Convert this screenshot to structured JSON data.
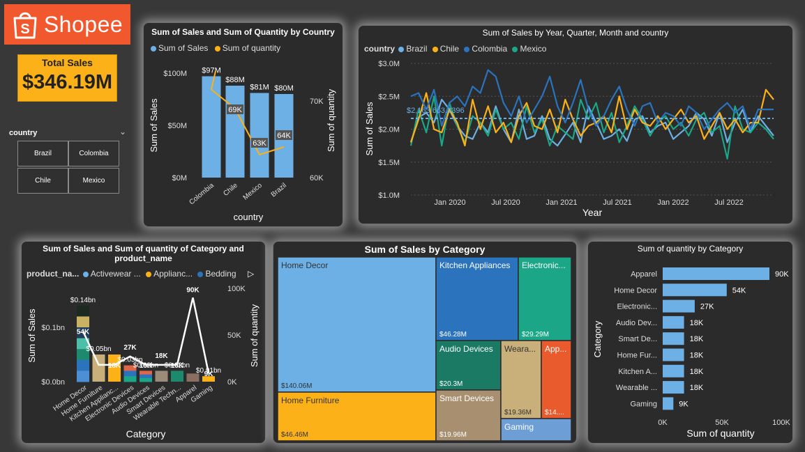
{
  "brand": {
    "name": "Shopee"
  },
  "kpi": {
    "label": "Total Sales",
    "value": "$346.19M"
  },
  "slicer": {
    "title": "country",
    "options": [
      "Brazil",
      "Colombia",
      "Chile",
      "Mexico"
    ]
  },
  "colors": {
    "blue": "#6cb0e6",
    "yellow": "#fbb117",
    "darkblue": "#2b73bd",
    "teal": "#1aa687",
    "white": "#ffffff"
  },
  "chart_data": [
    {
      "id": "country_chart",
      "type": "bar",
      "title": "Sum of Sales and Sum of Quantity by Country",
      "legend": [
        "Sum of Sales",
        "Sum of quantity"
      ],
      "categories": [
        "Colombia",
        "Chile",
        "Mexico",
        "Brazil"
      ],
      "series": [
        {
          "name": "Sum of Sales",
          "values": [
            97,
            88,
            81,
            80
          ],
          "labels": [
            "$97M",
            "$88M",
            "$81M",
            "$80M"
          ]
        },
        {
          "name": "Sum of quantity",
          "values": [
            71.5,
            69,
            63,
            64
          ],
          "labels": [
            "",
            "69K",
            "63K",
            "64K"
          ]
        }
      ],
      "xlabel": "country",
      "ylabel": "Sum of Sales",
      "y2label": "Sum of quantity",
      "yticks": [
        "$0M",
        "$50M",
        "$100M"
      ],
      "y2ticks": [
        "60K",
        "70K"
      ]
    },
    {
      "id": "trend_chart",
      "type": "line",
      "title": "Sum of Sales by Year, Quarter, Month and country",
      "legend_title": "country",
      "legend": [
        "Brazil",
        "Chile",
        "Colombia",
        "Mexico"
      ],
      "xticks": [
        "Jan 2020",
        "Jul 2020",
        "Jan 2021",
        "Jul 2021",
        "Jan 2022",
        "Jul 2022"
      ],
      "yticks": [
        "$3.0M",
        "$2.5M",
        "$2.0M",
        "$1.5M",
        "$1.0M"
      ],
      "xlabel": "Year",
      "ylabel": "Sum of Sales",
      "average_label": "$2,163,663.3396",
      "average_value": 2.164,
      "ylim": [
        1.0,
        3.0
      ],
      "series": [
        {
          "name": "Brazil",
          "values": [
            1.8,
            2.18,
            2.25,
            2.1,
            2.45,
            2.3,
            2.05,
            1.9,
            1.85,
            2.1,
            1.95,
            2.35,
            2.0,
            1.8,
            2.3,
            1.85,
            1.9,
            2.2,
            1.85,
            1.75,
            1.92,
            2.1,
            1.8,
            2.35,
            2.1,
            1.85,
            1.9,
            2.0,
            1.82,
            2.15,
            2.2,
            1.95,
            2.05,
            2.1,
            1.85,
            1.95,
            2.05,
            2.25,
            2.15,
            1.9,
            2.25,
            1.8,
            2.1,
            2.3,
            1.95,
            2.2,
            2.05,
            1.9
          ]
        },
        {
          "name": "Chile",
          "values": [
            1.8,
            2.15,
            2.55,
            2.0,
            1.95,
            2.3,
            2.1,
            1.75,
            2.45,
            2.0,
            2.35,
            1.95,
            2.1,
            1.8,
            2.2,
            2.4,
            2.05,
            2.0,
            2.3,
            1.95,
            2.45,
            2.15,
            1.9,
            2.05,
            2.1,
            2.2,
            1.95,
            2.5,
            2.0,
            2.3,
            2.1,
            2.05,
            2.2,
            2.0,
            2.15,
            2.3,
            2.1,
            2.2,
            1.85,
            2.05,
            2.25,
            2.0,
            2.15,
            1.95,
            2.1,
            2.1,
            2.6,
            2.45
          ]
        },
        {
          "name": "Colombia",
          "values": [
            2.5,
            2.55,
            2.3,
            2.6,
            2.05,
            2.4,
            2.5,
            2.35,
            2.65,
            2.55,
            2.9,
            2.8,
            2.4,
            2.2,
            2.5,
            2.1,
            2.3,
            2.5,
            2.8,
            2.35,
            2.1,
            2.4,
            2.75,
            2.3,
            2.05,
            2.2,
            2.45,
            2.65,
            2.3,
            2.05,
            2.35,
            2.4,
            2.1,
            2.25,
            2.2,
            2.05,
            2.35,
            2.25,
            2.0,
            2.15,
            2.3,
            2.4,
            2.25,
            2.35,
            2.0,
            2.3,
            2.3,
            2.3
          ]
        },
        {
          "name": "Mexico",
          "values": [
            1.75,
            2.3,
            1.95,
            2.5,
            1.75,
            2.4,
            2.05,
            1.8,
            2.2,
            2.1,
            1.9,
            2.3,
            2.0,
            2.1,
            1.85,
            2.35,
            1.95,
            2.15,
            1.75,
            2.05,
            1.95,
            1.85,
            2.45,
            2.15,
            2.4,
            1.95,
            2.25,
            1.8,
            2.05,
            2.35,
            2.15,
            1.9,
            2.1,
            2.2,
            2.0,
            2.1,
            1.9,
            2.15,
            2.25,
            1.95,
            2.05,
            1.55,
            2.35,
            2.0,
            1.95,
            2.1,
            2.0,
            1.85
          ]
        }
      ]
    },
    {
      "id": "category_product_chart",
      "type": "bar",
      "title": "Sum of Sales and Sum of quantity of Category and product_name",
      "legend_title": "product_na...",
      "legend": [
        "Activewear ...",
        "Applianc...",
        "Bedding"
      ],
      "categories": [
        "Home Decor",
        "Home Furniture",
        "Kitchen Applianc...",
        "Electronic Devices",
        "Audio Devices",
        "Smart Devices",
        "Wearable Techn...",
        "Apparel",
        "Gaming"
      ],
      "series": [
        {
          "name": "Sum of Sales",
          "values": [
            0.14,
            0.05,
            0.05,
            0.03,
            0.02,
            0.02,
            0.02,
            0.015,
            0.01
          ],
          "labels": [
            "$0.14bn",
            "$0.05bn",
            "",
            "$0.03bn",
            "$0.02bn",
            "",
            "$0.02bn",
            "",
            "$0.01bn"
          ]
        },
        {
          "name": "Sum of quantity",
          "values": [
            54,
            18,
            18,
            27,
            18,
            18,
            18,
            90,
            9
          ],
          "labels": [
            "54K",
            "",
            "18K",
            "27K",
            "18K",
            "18K",
            "18K",
            "90K",
            "9K"
          ]
        }
      ],
      "xlabel": "Category",
      "ylabel": "Sum of Sales",
      "y2label": "Sum of quantity",
      "yticks": [
        "$0.0bn",
        "$0.1bn"
      ],
      "y2ticks": [
        "0K",
        "50K",
        "100K"
      ]
    },
    {
      "id": "treemap_chart",
      "type": "treemap",
      "title": "Sum of Sales by Category",
      "items": [
        {
          "name": "Home Decor",
          "label": "$140.06M"
        },
        {
          "name": "Home Furniture",
          "label": "$46.46M"
        },
        {
          "name": "Kitchen Appliances",
          "label": "$46.28M"
        },
        {
          "name": "Electronic...",
          "label": "$29.29M"
        },
        {
          "name": "Audio Devices",
          "label": "$20.3M"
        },
        {
          "name": "Smart Devices",
          "label": "$19.96M"
        },
        {
          "name": "Weara...",
          "label": "$19.36M"
        },
        {
          "name": "App...",
          "label": "$14...."
        },
        {
          "name": "Gaming",
          "label": ""
        }
      ]
    },
    {
      "id": "quantity_chart",
      "type": "bar",
      "orientation": "horizontal",
      "title": "Sum of quantity by Category",
      "categories": [
        "Apparel",
        "Home Decor",
        "Electronic...",
        "Audio Dev...",
        "Smart De...",
        "Home Fur...",
        "Kitchen A...",
        "Wearable ...",
        "Gaming"
      ],
      "values": [
        90,
        54,
        27,
        18,
        18,
        18,
        18,
        18,
        9
      ],
      "labels": [
        "90K",
        "54K",
        "27K",
        "18K",
        "18K",
        "18K",
        "18K",
        "18K",
        "9K"
      ],
      "xticks": [
        "0K",
        "50K",
        "100K"
      ],
      "xlabel": "Sum of quantity",
      "ylabel": "Category",
      "xlim": [
        0,
        100
      ]
    }
  ]
}
